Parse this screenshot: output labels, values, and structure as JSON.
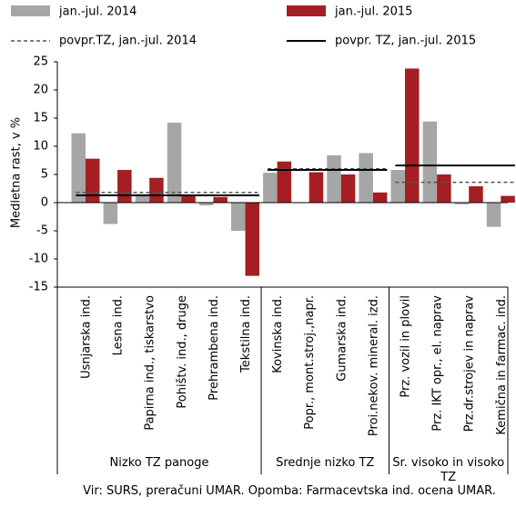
{
  "chart_data": {
    "type": "bar",
    "y_label": "Medletna rast, v %",
    "categories": [
      "Usnjarska ind.",
      "Lesna ind.",
      "Papirna ind., tiskarstvo",
      "Pohištv. ind., druge",
      "Prehrambena ind.",
      "Tekstilna ind.",
      "Kovinska ind.",
      "Popr., mont.stroj.,napr.",
      "Gumarska ind.",
      "Proi.nekov. mineral. izd.",
      "Prz. vozil in plovil",
      "Prz. IKT opr., el. naprav",
      "Prz.dr.strojev in naprav",
      "Kemična in farmac. ind."
    ],
    "series": [
      {
        "name": "jan.-jul. 2014",
        "color": "#a6a6a6",
        "values": [
          12.3,
          -3.8,
          1.5,
          14.2,
          -0.5,
          -5.0,
          5.3,
          0,
          8.4,
          8.8,
          5.8,
          14.4,
          -0.3,
          -4.3
        ]
      },
      {
        "name": "jan.-jul. 2015",
        "color": "#a51e22",
        "values": [
          7.8,
          5.8,
          4.4,
          1.4,
          1.0,
          -13.0,
          7.3,
          5.4,
          5.0,
          1.8,
          23.8,
          5.0,
          2.9,
          1.2
        ]
      }
    ],
    "groups": [
      {
        "label": "Nizko TZ panoge",
        "size": 6
      },
      {
        "label": "Srednje nizko TZ",
        "size": 4
      },
      {
        "label": "Sr. visoko in visoko TZ",
        "size": 4
      }
    ],
    "averages": [
      {
        "name": "povpr.TZ, jan.-jul. 2014",
        "color": "#555555",
        "dash": true,
        "values": [
          1.8,
          6.0,
          3.6
        ]
      },
      {
        "name": "povpr. TZ, jan.-jul. 2015",
        "color": "#000000",
        "dash": false,
        "values": [
          1.3,
          5.8,
          6.6
        ]
      }
    ],
    "ylim": [
      -15,
      25
    ],
    "yticks": [
      -15,
      -10,
      -5,
      0,
      5,
      10,
      15,
      20,
      25
    ],
    "note": "Vir: SURS, preračuni UMAR. Opomba: Farmacevtska ind. ocena UMAR."
  }
}
